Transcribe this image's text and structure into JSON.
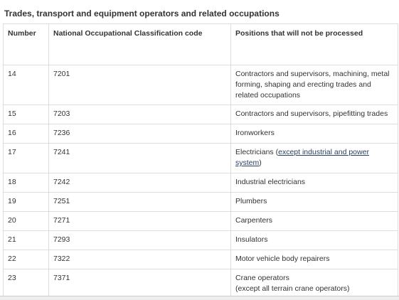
{
  "caption": "Trades, transport and equipment operators and related occupations",
  "table": {
    "headers": {
      "number": "Number",
      "noc_code": "National Occupational Classification code",
      "positions": "Positions that will not be processed"
    },
    "rows": [
      {
        "number": "14",
        "code": "7201",
        "position": "Contractors and supervisors, machining, metal forming, shaping and erecting trades and related occupations"
      },
      {
        "number": "15",
        "code": "7203",
        "position": "Contractors and supervisors, pipefitting trades"
      },
      {
        "number": "16",
        "code": "7236",
        "position": "Ironworkers"
      },
      {
        "number": "17",
        "code": "7241",
        "position_prefix": "Electricians (",
        "position_link": "except industrial and power system",
        "position_suffix": ")"
      },
      {
        "number": "18",
        "code": "7242",
        "position": "Industrial electricians"
      },
      {
        "number": "19",
        "code": "7251",
        "position": "Plumbers"
      },
      {
        "number": "20",
        "code": "7271",
        "position": "Carpenters"
      },
      {
        "number": "21",
        "code": "7293",
        "position": "Insulators"
      },
      {
        "number": "22",
        "code": "7322",
        "position": "Motor vehicle body repairers"
      },
      {
        "number": "23",
        "code": "7371",
        "position_line1": "Crane operators",
        "position_line2": "(except all terrain crane operators)"
      }
    ]
  },
  "colors": {
    "text": "#333333",
    "border": "#dddddd",
    "link": "#284162"
  }
}
